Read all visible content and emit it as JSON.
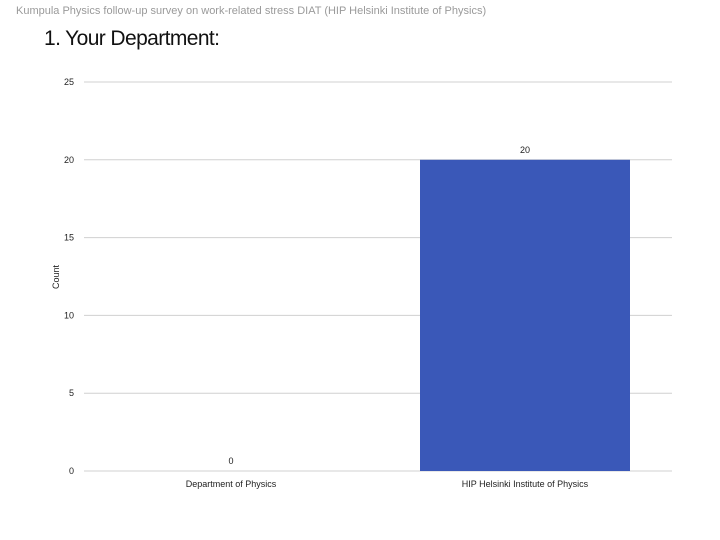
{
  "header": {
    "survey_title": "Kumpula Physics follow-up survey on work-related stress DIAT (HIP  Helsinki Institute of Physics)"
  },
  "question": {
    "title": "1. Your Department:"
  },
  "chart_data": {
    "type": "bar",
    "title": "",
    "xlabel": "",
    "ylabel": "Count",
    "categories": [
      "Department of Physics",
      "HIP  Helsinki Institute of Physics"
    ],
    "values": [
      0,
      20
    ],
    "ylim": [
      0,
      25
    ],
    "yticks": [
      0,
      5,
      10,
      15,
      20,
      25
    ],
    "data_labels": [
      "0",
      "20"
    ],
    "grid": true,
    "legend": "none",
    "bar_color": "#3a58b8",
    "grid_color": "#d0d0d0"
  }
}
